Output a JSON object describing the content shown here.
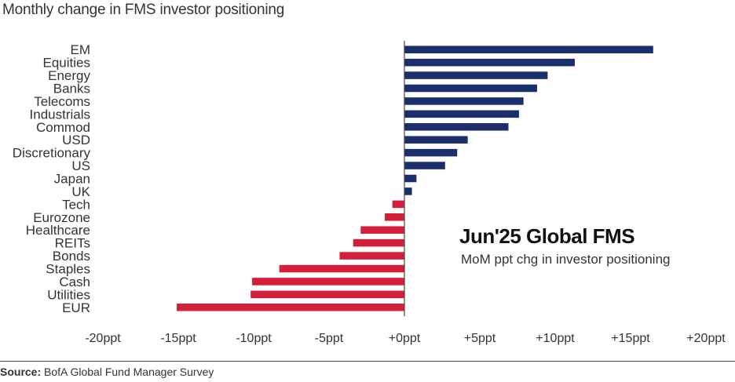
{
  "chart_data": {
    "type": "bar",
    "orientation": "horizontal",
    "title": "Monthly change in FMS investor positioning",
    "categories": [
      "EM",
      "Equities",
      "Energy",
      "Banks",
      "Telecoms",
      "Industrials",
      "Commod",
      "USD",
      "Discretionary",
      "US",
      "Japan",
      "UK",
      "Tech",
      "Eurozone",
      "Healthcare",
      "REITs",
      "Bonds",
      "Staples",
      "Cash",
      "Utilities",
      "EUR"
    ],
    "values": [
      16.5,
      11.3,
      9.5,
      8.8,
      7.9,
      7.6,
      6.9,
      4.2,
      3.5,
      2.7,
      0.8,
      0.5,
      -0.8,
      -1.3,
      -2.9,
      -3.4,
      -4.3,
      -8.3,
      -10.1,
      -10.2,
      -15.1
    ],
    "xlim": [
      -20,
      20
    ],
    "xticks": [
      -20,
      -15,
      -10,
      -5,
      0,
      5,
      10,
      15,
      20
    ],
    "xtick_labels": [
      "-20ppt",
      "-15ppt",
      "-10ppt",
      "-5ppt",
      "+0ppt",
      "+5ppt",
      "+10ppt",
      "+15ppt",
      "+20ppt"
    ],
    "colors": {
      "positive": "#1b2f6b",
      "negative": "#d51f3a"
    },
    "annotation": {
      "title": "Jun'25 Global FMS",
      "subtitle": "MoM ppt chg in investor positioning"
    },
    "grid": false
  },
  "source": {
    "label": "Source:",
    "text": " BofA Global Fund Manager Survey"
  }
}
